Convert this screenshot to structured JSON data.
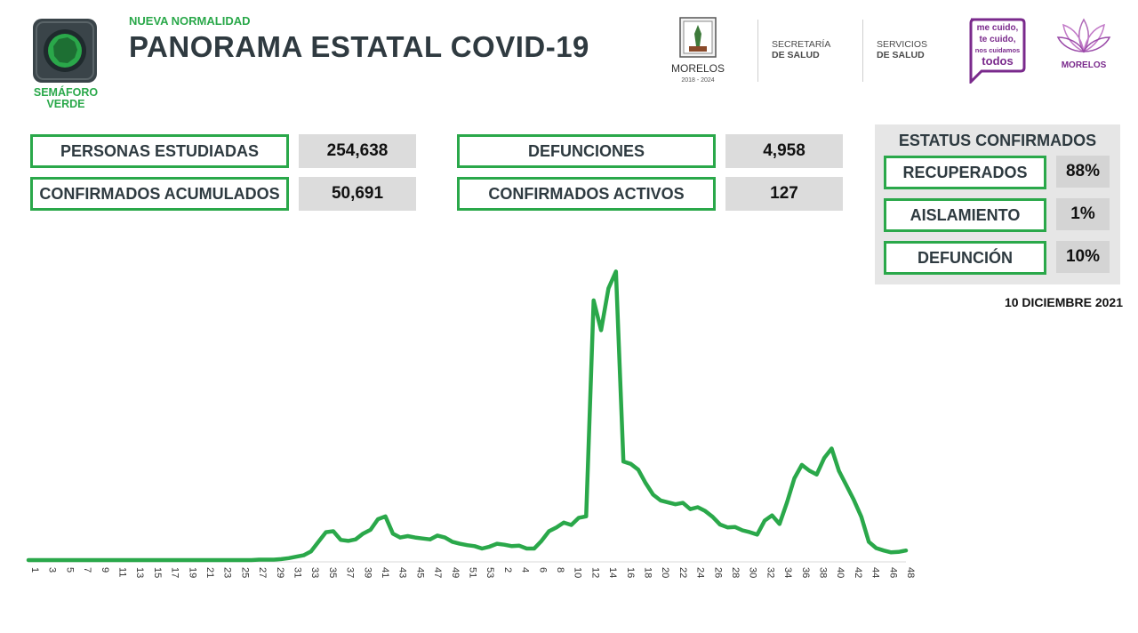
{
  "header": {
    "subtitle": "NUEVA NORMALIDAD",
    "title": "PANORAMA ESTATAL COVID-19",
    "semaforo_label_1": "SEMÁFORO",
    "semaforo_label_2": "VERDE",
    "logos": {
      "morelos_name": "MORELOS",
      "morelos_years": "2018 - 2024",
      "secretaria_line1": "SECRETARÍA",
      "secretaria_line2": "DE SALUD",
      "servicios_line1": "SERVICIOS",
      "servicios_line2": "DE SALUD",
      "campaign_line1": "me cuido,",
      "campaign_line2": "te cuido,",
      "campaign_line3": "nos cuidamos",
      "campaign_line4": "todos",
      "gov_name": "MORELOS"
    }
  },
  "stats": {
    "personas_estudiadas_label": "PERSONAS ESTUDIADAS",
    "personas_estudiadas_value": "254,638",
    "confirmados_acumulados_label": "CONFIRMADOS ACUMULADOS",
    "confirmados_acumulados_value": "50,691",
    "defunciones_label": "DEFUNCIONES",
    "defunciones_value": "4,958",
    "confirmados_activos_label": "CONFIRMADOS ACTIVOS",
    "confirmados_activos_value": "127"
  },
  "status": {
    "title": "ESTATUS CONFIRMADOS",
    "recuperados_label": "RECUPERADOS",
    "recuperados_value": "88%",
    "aislamiento_label": "AISLAMIENTO",
    "aislamiento_value": "1%",
    "defuncion_label": "DEFUNCIÓN",
    "defuncion_value": "10%"
  },
  "report_date": "10 DICIEMBRE 2021",
  "colors": {
    "accent_green": "#2aa84a",
    "dark_text": "#2e3a40",
    "value_bg": "#dcdcdc",
    "campaign_purple": "#7a2a8c"
  },
  "chart_data": {
    "type": "line",
    "title": "",
    "xlabel": "",
    "ylabel": "",
    "tick_labels": [
      "1",
      "3",
      "5",
      "7",
      "9",
      "11",
      "13",
      "15",
      "17",
      "19",
      "21",
      "23",
      "25",
      "27",
      "29",
      "31",
      "33",
      "35",
      "37",
      "39",
      "41",
      "43",
      "45",
      "47",
      "49",
      "51",
      "53",
      "2",
      "4",
      "6",
      "8",
      "10",
      "12",
      "14",
      "16",
      "18",
      "20",
      "22",
      "24",
      "26",
      "28",
      "30",
      "32",
      "34",
      "36",
      "38",
      "40",
      "42",
      "44",
      "46",
      "48"
    ],
    "values": [
      0,
      0,
      0,
      0,
      0,
      0,
      0,
      0,
      0,
      0,
      0,
      0,
      0,
      0,
      0,
      0,
      0,
      0,
      0,
      0,
      0,
      0,
      0,
      0,
      0,
      0,
      0,
      0,
      0,
      0,
      0,
      1,
      1,
      1,
      2,
      4,
      7,
      10,
      18,
      38,
      58,
      60,
      42,
      40,
      43,
      55,
      63,
      85,
      91,
      55,
      47,
      50,
      47,
      45,
      43,
      51,
      47,
      38,
      34,
      31,
      29,
      24,
      28,
      34,
      32,
      29,
      30,
      24,
      24,
      40,
      60,
      68,
      78,
      73,
      88,
      91,
      540,
      478,
      565,
      600,
      205,
      200,
      188,
      160,
      136,
      124,
      120,
      116,
      119,
      106,
      110,
      102,
      90,
      74,
      68,
      69,
      62,
      58,
      53,
      82,
      93,
      75,
      120,
      170,
      198,
      186,
      178,
      212,
      232,
      185,
      155,
      125,
      90,
      38,
      25,
      20,
      16,
      17,
      20
    ],
    "ylim": [
      0,
      610
    ],
    "grid": false,
    "legend": "none",
    "color": "#2aa84a"
  }
}
